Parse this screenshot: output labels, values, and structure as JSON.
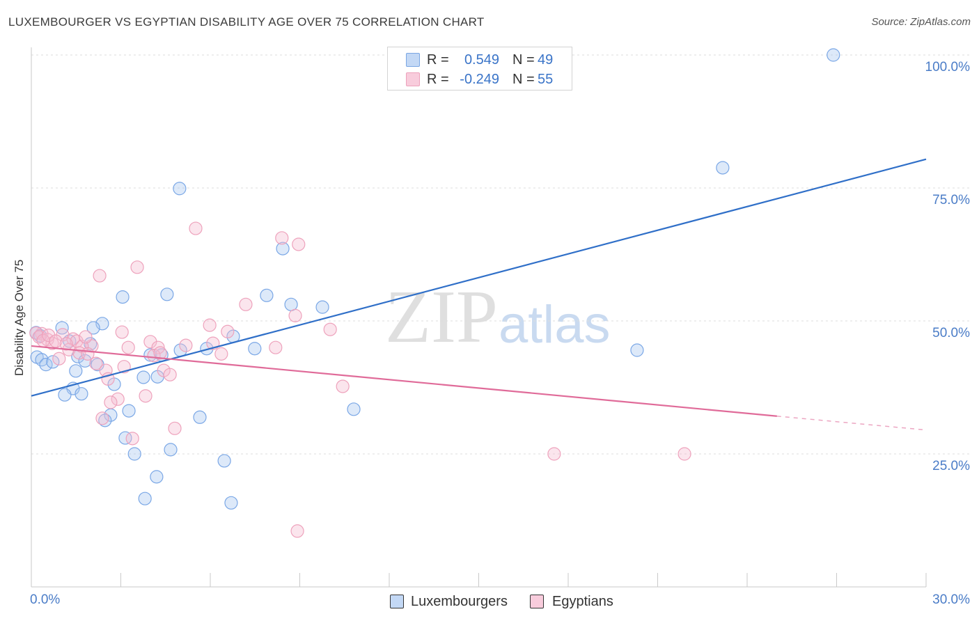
{
  "source": "Source: ZipAtlas.com",
  "watermark": {
    "zip": "ZIP",
    "atlas": "atlas"
  },
  "colors": {
    "title_text": "#3c3c3c",
    "axis_value_text": "#4a7cc7",
    "gridline": "#dddddd"
  },
  "chart_data": {
    "type": "scatter",
    "title": "LUXEMBOURGER VS EGYPTIAN DISABILITY AGE OVER 75 CORRELATION CHART",
    "ylabel": "Disability Age Over 75",
    "xlim": [
      0,
      30
    ],
    "ylim": [
      0,
      100
    ],
    "grid": true,
    "x_ticks": [
      0,
      3,
      6,
      9,
      12,
      15,
      18,
      21,
      24,
      27,
      30
    ],
    "x_tick_labels": [
      {
        "value": 0,
        "label": "0.0%"
      },
      {
        "value": 30,
        "label": "30.0%"
      }
    ],
    "y_gridlines": [
      25,
      50,
      75,
      100
    ],
    "y_tick_labels": [
      {
        "value": 100,
        "label": "100.0%"
      },
      {
        "value": 75,
        "label": "75.0%"
      },
      {
        "value": 50,
        "label": "50.0%"
      },
      {
        "value": 25,
        "label": "25.0%"
      }
    ],
    "legend": {
      "placement": "top",
      "r_label": "R =",
      "n_label": "N ="
    },
    "series": [
      {
        "name": "Luxembourgers",
        "r": "0.549",
        "n": "49",
        "color": "#7aa7e6",
        "fill": "#a9c8f1",
        "line_color": "#2f6fc8",
        "points": [
          [
            26.89,
            100.0
          ],
          [
            23.18,
            78.8
          ],
          [
            4.97,
            74.9
          ],
          [
            8.43,
            63.6
          ],
          [
            4.55,
            55.0
          ],
          [
            7.89,
            54.8
          ],
          [
            3.06,
            54.5
          ],
          [
            8.71,
            53.1
          ],
          [
            9.76,
            52.6
          ],
          [
            2.38,
            49.5
          ],
          [
            1.03,
            48.7
          ],
          [
            2.08,
            48.7
          ],
          [
            6.77,
            47.1
          ],
          [
            1.28,
            46.2
          ],
          [
            1.98,
            45.7
          ],
          [
            5.88,
            44.8
          ],
          [
            7.49,
            44.8
          ],
          [
            5.0,
            44.5
          ],
          [
            20.31,
            44.5
          ],
          [
            3.99,
            43.6
          ],
          [
            4.37,
            43.6
          ],
          [
            0.19,
            43.2
          ],
          [
            1.56,
            43.3
          ],
          [
            0.35,
            42.7
          ],
          [
            1.8,
            42.5
          ],
          [
            0.49,
            41.8
          ],
          [
            0.72,
            42.3
          ],
          [
            2.22,
            41.8
          ],
          [
            1.49,
            40.6
          ],
          [
            3.76,
            39.4
          ],
          [
            4.23,
            39.5
          ],
          [
            2.78,
            38.1
          ],
          [
            1.4,
            37.3
          ],
          [
            1.12,
            36.1
          ],
          [
            1.68,
            36.3
          ],
          [
            10.81,
            33.4
          ],
          [
            3.27,
            33.1
          ],
          [
            2.66,
            32.3
          ],
          [
            5.65,
            31.9
          ],
          [
            2.47,
            31.3
          ],
          [
            3.15,
            28.0
          ],
          [
            4.67,
            25.8
          ],
          [
            3.46,
            25.0
          ],
          [
            6.47,
            23.7
          ],
          [
            4.2,
            20.7
          ],
          [
            3.81,
            16.6
          ],
          [
            6.7,
            15.8
          ],
          [
            0.16,
            47.8
          ],
          [
            0.3,
            47.2
          ]
        ],
        "trend": [
          {
            "from": [
              0,
              35.9
            ],
            "to": [
              30,
              80.4
            ],
            "dashed": false
          }
        ]
      },
      {
        "name": "Egyptians",
        "r": "-0.249",
        "n": "55",
        "color": "#eea2bc",
        "fill": "#f6bdd1",
        "line_color": "#e06b99",
        "points": [
          [
            5.51,
            67.4
          ],
          [
            8.4,
            65.6
          ],
          [
            8.96,
            64.4
          ],
          [
            3.55,
            60.1
          ],
          [
            2.29,
            58.5
          ],
          [
            7.19,
            53.1
          ],
          [
            8.85,
            51.0
          ],
          [
            5.98,
            49.2
          ],
          [
            10.02,
            48.4
          ],
          [
            3.04,
            47.9
          ],
          [
            6.58,
            48.0
          ],
          [
            1.05,
            47.4
          ],
          [
            0.35,
            47.6
          ],
          [
            0.16,
            47.7
          ],
          [
            1.4,
            46.6
          ],
          [
            0.54,
            46.5
          ],
          [
            3.99,
            46.1
          ],
          [
            5.18,
            45.4
          ],
          [
            6.09,
            45.8
          ],
          [
            1.52,
            46.2
          ],
          [
            0.7,
            45.8
          ],
          [
            2.03,
            45.3
          ],
          [
            1.7,
            45.2
          ],
          [
            3.25,
            45.0
          ],
          [
            4.25,
            45.0
          ],
          [
            8.19,
            45.0
          ],
          [
            1.26,
            44.6
          ],
          [
            1.61,
            44.0
          ],
          [
            1.89,
            43.8
          ],
          [
            6.37,
            43.8
          ],
          [
            4.11,
            43.5
          ],
          [
            0.93,
            42.9
          ],
          [
            2.17,
            42.0
          ],
          [
            3.11,
            41.4
          ],
          [
            4.44,
            40.7
          ],
          [
            2.5,
            40.7
          ],
          [
            4.65,
            39.9
          ],
          [
            2.57,
            39.1
          ],
          [
            10.44,
            37.7
          ],
          [
            3.83,
            35.9
          ],
          [
            2.9,
            35.3
          ],
          [
            2.66,
            34.7
          ],
          [
            2.38,
            31.7
          ],
          [
            4.81,
            29.8
          ],
          [
            3.39,
            27.9
          ],
          [
            17.53,
            25.0
          ],
          [
            21.9,
            25.0
          ],
          [
            8.92,
            10.5
          ],
          [
            0.26,
            47.0
          ],
          [
            0.4,
            46.3
          ],
          [
            0.58,
            47.3
          ],
          [
            0.82,
            46.2
          ],
          [
            1.17,
            45.7
          ],
          [
            1.82,
            47.0
          ],
          [
            4.32,
            44.0
          ]
        ],
        "trend": [
          {
            "from": [
              0,
              45.3
            ],
            "to": [
              25,
              32.1
            ],
            "dashed": false
          },
          {
            "from": [
              25,
              32.1
            ],
            "to": [
              30,
              29.5
            ],
            "dashed": true
          }
        ]
      }
    ]
  }
}
